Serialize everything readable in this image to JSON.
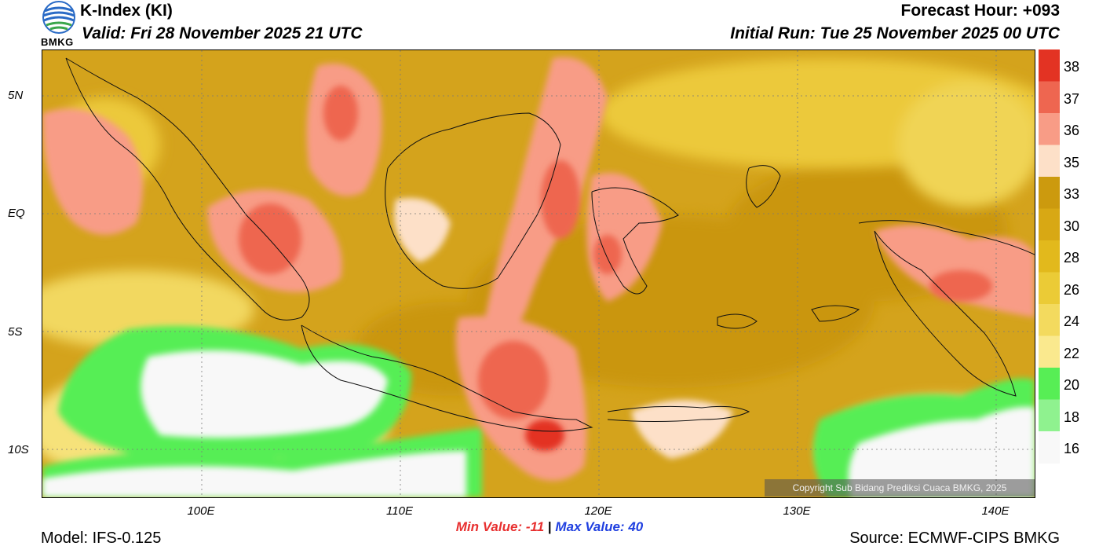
{
  "header": {
    "title": "K-Index (KI)",
    "valid": "Valid: Fri 28 November 2025 21 UTC",
    "forecast_hour": "Forecast Hour: +093",
    "initial_run": "Initial Run: Tue 25 November 2025 00 UTC",
    "logo_text": "BMKG"
  },
  "map": {
    "lat_labels": [
      "5N",
      "EQ",
      "5S",
      "10S"
    ],
    "lon_labels": [
      "100E",
      "110E",
      "120E",
      "130E",
      "140E"
    ],
    "copyright": "Copyright Sub Bidang Prediksi Cuaca BMKG, 2025"
  },
  "stats": {
    "min_label": "Min Value:",
    "min_value": "-11",
    "separator": "|",
    "max_label": "Max Value:",
    "max_value": "40"
  },
  "footer": {
    "model": "Model: IFS-0.125",
    "source": "Source: ECMWF-CIPS BMKG"
  },
  "colorbar": {
    "labels": [
      "38",
      "37",
      "36",
      "35",
      "33",
      "30",
      "28",
      "26",
      "24",
      "22",
      "20",
      "18",
      "16"
    ],
    "colors": [
      "#e33323",
      "#ee6650",
      "#f89c86",
      "#fde0c8",
      "#cc9a0e",
      "#d8a814",
      "#e2b91c",
      "#ebcb36",
      "#f3da5e",
      "#fae98e",
      "#57ee55",
      "#8ff28f",
      "#f8f8f8"
    ]
  }
}
